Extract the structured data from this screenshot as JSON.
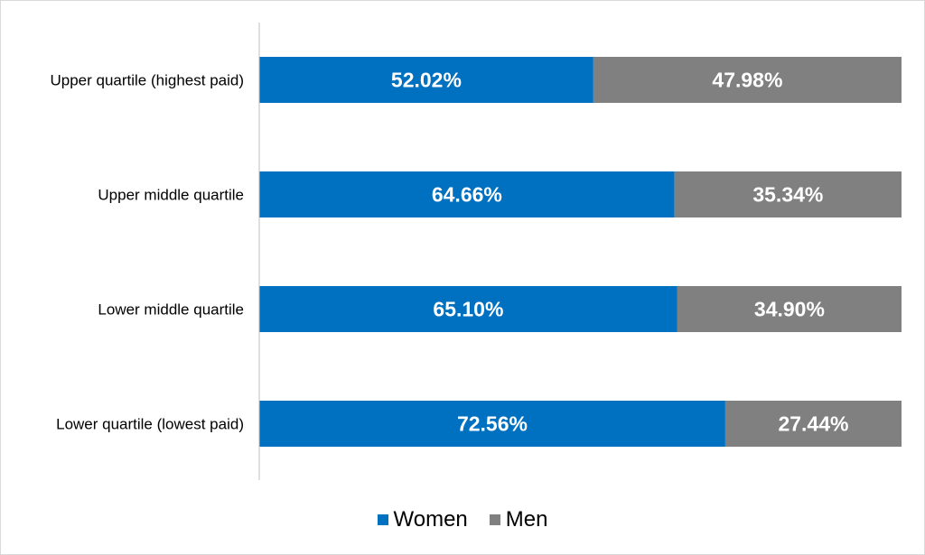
{
  "colors": {
    "women": "#0070c0",
    "men": "#808080",
    "axis": "#bfbfbf"
  },
  "chart_data": {
    "type": "bar",
    "orientation": "horizontal",
    "stacked": true,
    "categories": [
      "Upper quartile (highest paid)",
      "Upper middle quartile",
      "Lower middle quartile",
      "Lower quartile (lowest paid)"
    ],
    "series": [
      {
        "name": "Women",
        "values": [
          52.02,
          64.66,
          65.1,
          72.56
        ],
        "labels": [
          "52.02%",
          "64.66%",
          "65.10%",
          "72.56%"
        ]
      },
      {
        "name": "Men",
        "values": [
          47.98,
          35.34,
          34.9,
          27.44
        ],
        "labels": [
          "47.98%",
          "35.34%",
          "34.90%",
          "27.44%"
        ]
      }
    ],
    "xlim": [
      0,
      100
    ],
    "grid": false,
    "legend_position": "bottom"
  }
}
